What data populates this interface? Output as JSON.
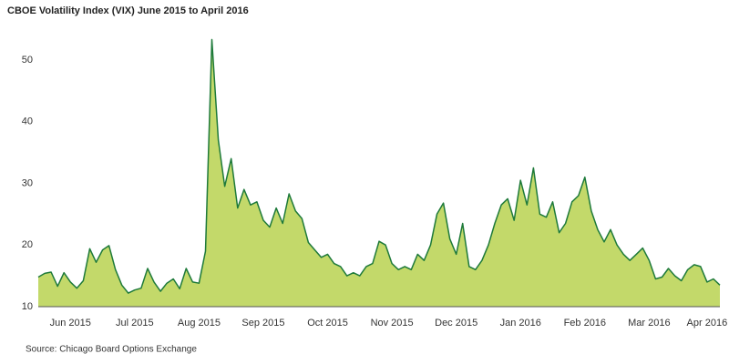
{
  "chart_data": {
    "type": "area",
    "title": "CBOE Volatility Index (VIX) June 2015 to April 2016",
    "source": "Source: Chicago Board Options Exchange",
    "categories": [
      null,
      null,
      null,
      null,
      null,
      "Jun 2015",
      null,
      null,
      null,
      null,
      null,
      null,
      null,
      null,
      null,
      "Jul 2015",
      null,
      null,
      null,
      null,
      null,
      null,
      null,
      null,
      null,
      "Aug 2015",
      null,
      null,
      null,
      null,
      null,
      null,
      null,
      null,
      null,
      "Sep 2015",
      null,
      null,
      null,
      null,
      null,
      null,
      null,
      null,
      null,
      "Oct 2015",
      null,
      null,
      null,
      null,
      null,
      null,
      null,
      null,
      null,
      "Nov 2015",
      null,
      null,
      null,
      null,
      null,
      null,
      null,
      null,
      null,
      "Dec 2015",
      null,
      null,
      null,
      null,
      null,
      null,
      null,
      null,
      null,
      "Jan 2016",
      null,
      null,
      null,
      null,
      null,
      null,
      null,
      null,
      null,
      "Feb 2016",
      null,
      null,
      null,
      null,
      null,
      null,
      null,
      null,
      null,
      "Mar 2016",
      null,
      null,
      null,
      null,
      null,
      null,
      null,
      null,
      "Apr 2016",
      null,
      null
    ],
    "values": [
      14.8,
      15.4,
      15.6,
      13.3,
      15.5,
      14.0,
      13.0,
      14.2,
      19.4,
      17.2,
      19.2,
      19.9,
      16.0,
      13.5,
      12.2,
      12.7,
      13.0,
      16.2,
      14.0,
      12.5,
      13.8,
      14.5,
      12.9,
      16.2,
      14.0,
      13.8,
      19.0,
      53.3,
      37.0,
      29.5,
      34.0,
      26.0,
      29.0,
      26.5,
      27.0,
      24.0,
      22.9,
      26.0,
      23.5,
      28.3,
      25.5,
      24.3,
      20.4,
      19.2,
      18.0,
      18.5,
      17.0,
      16.5,
      15.0,
      15.5,
      15.0,
      16.5,
      17.0,
      20.6,
      20.0,
      17.0,
      16.0,
      16.5,
      16.0,
      18.5,
      17.5,
      20.0,
      25.0,
      26.8,
      21.0,
      18.5,
      23.5,
      16.5,
      16.0,
      17.5,
      20.0,
      23.5,
      26.5,
      27.5,
      24.0,
      30.5,
      26.5,
      32.5,
      25.0,
      24.5,
      27.0,
      22.0,
      23.5,
      27.0,
      28.0,
      31.0,
      25.5,
      22.5,
      20.5,
      22.5,
      20.0,
      18.5,
      17.5,
      18.5,
      19.5,
      17.5,
      14.5,
      14.8,
      16.2,
      15.0,
      14.2,
      16.0,
      16.8,
      16.5,
      14.0,
      14.5,
      13.5
    ],
    "color": "#c3d96a",
    "line_color": "#1e7a3a",
    "ylim": [
      10,
      55
    ],
    "yticks": [
      10,
      20,
      30,
      40,
      50
    ],
    "grid": false
  }
}
